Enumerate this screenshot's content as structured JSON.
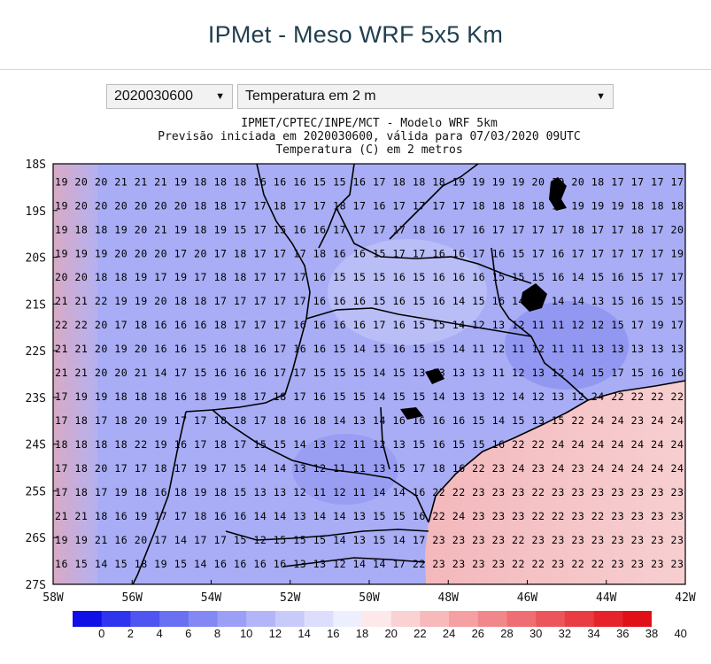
{
  "header": {
    "title": "IPMet - Meso WRF 5x5 Km"
  },
  "controls": {
    "date_value": "2020030600",
    "variable_value": "Temperatura em 2 m"
  },
  "map_title": {
    "line1": "IPMET/CPTEC/INPE/MCT - Modelo WRF 5km",
    "line2": "Previsão iniciada em 2020030600, válida para 07/03/2020 09UTC",
    "line3": "Temperatura (C) em 2 metros"
  },
  "axes": {
    "lat_labels": [
      "18S",
      "19S",
      "20S",
      "21S",
      "22S",
      "23S",
      "24S",
      "25S",
      "26S",
      "27S"
    ],
    "lon_labels": [
      "58W",
      "56W",
      "54W",
      "52W",
      "50W",
      "48W",
      "46W",
      "44W",
      "42W"
    ]
  },
  "colorbar": {
    "labels": [
      "0",
      "2",
      "4",
      "6",
      "8",
      "10",
      "12",
      "14",
      "16",
      "18",
      "20",
      "22",
      "24",
      "26",
      "28",
      "30",
      "32",
      "34",
      "36",
      "38",
      "40"
    ],
    "colors": [
      "#1010e6",
      "#2f34ee",
      "#4f55f0",
      "#6a70f2",
      "#8388f4",
      "#9ba0f6",
      "#b2b6f8",
      "#c8cbfa",
      "#dcdefc",
      "#eeeffe",
      "#fde9ea",
      "#fbd2d3",
      "#f8b9bb",
      "#f5a0a3",
      "#f2878b",
      "#ef6e73",
      "#ec555b",
      "#e93c43",
      "#e6232b",
      "#e01018"
    ],
    "accent_cool": "#8b95f3",
    "accent_warm": "#f7c2c4"
  },
  "grid_rows": [
    "19 20 20 21 21 21 19 18 18 18 16 16 16 15 15 16 17 18 18 18 19 19 19 19 20 19 20 18 17 17 17 17",
    "19 20 20 20 20 20 20 18 18 17 17 18 17 17 18 17 16 17 17 17 17 18 18 18 18 19 19 19 19 18 18 18",
    "19 18 18 19 20 21 19 18 19 15 17 15 16 16 17 17 17 17 18 16 17 16 17 17 17 17 18 17 17 18 17 20",
    "19 19 19 20 20 20 17 20 17 18 17 17 17 18 16 16 15 17 17 16 16 17 16 15 17 16 17 17 17 17 17 19",
    "20 20 18 18 19 17 19 17 18 18 17 17 17 16 15 15 15 16 15 16 16 16 15 15 15 16 14 15 16 15 17 17",
    "21 21 22 19 19 20 18 18 17 17 17 17 17 16 16 16 15 16 15 16 14 15 16 14 15 14 14 13 15 16 15 15",
    "22 22 20 17 18 16 16 16 18 17 17 17 16 16 16 16 17 16 15 15 14 12 13 12 11 11 12 12 15 17 19 17",
    "21 21 20 19 20 16 16 15 16 18 16 17 16 16 15 14 15 16 15 15 14 11 12 11 12 11 11 13 13 13 13 13",
    "21 21 20 20 21 14 17 15 16 16 16 17 17 15 15 15 14 15 13 13 13 13 11 12 13 12 14 15 17 15 16 16",
    "17 19 19 18 18 18 16 18 19 18 17 18 17 16 15 15 14 15 15 14 13 13 12 14 12 13 12 24 22 22 22 22",
    "17 18 17 18 20 19 17 17 18 18 17 18 16 18 14 13 14 16 16 16 16 15 14 15 13 15 22 24 24 23 24 24",
    "18 18 18 18 22 19 16 17 18 17 15 15 14 13 12 11 12 13 15 16 15 15 16 22 22 24 24 24 24 24 24 24",
    "17 18 20 17 17 18 17 19 17 15 14 14 13 12 11 11 13 15 17 18 16 22 23 24 23 24 23 24 24 24 24 24",
    "17 18 17 19 18 16 18 19 18 15 13 13 12 11 12 11 14 14 16 22 22 23 23 23 22 23 23 23 23 23 23 23",
    "21 21 18 16 19 17 17 18 16 16 14 14 13 14 14 13 15 15 16 22 24 23 23 23 22 22 23 22 23 23 23 23",
    "19 19 21 16 20 17 14 17 17 15 12 15 15 15 14 13 15 14 17 23 23 23 23 22 23 23 23 23 23 23 23 23",
    "16 15 14 15 18 19 15 14 16 16 16 16 13 13 12 14 14 17 22 23 23 23 23 22 22 23 22 22 23 23 23 23"
  ]
}
